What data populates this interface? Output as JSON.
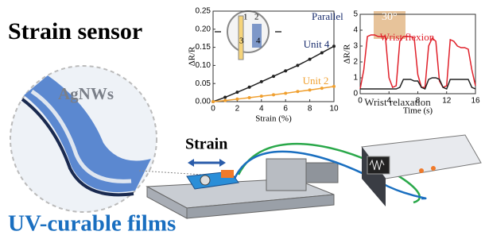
{
  "title": "Strain sensor",
  "subtitle": "UV-curable films",
  "labels": {
    "agnws": "AgNWs",
    "strain": "Strain"
  },
  "chart_data": [
    {
      "type": "line",
      "xlabel": "Strain (%)",
      "ylabel": "ΔR/R",
      "annotation": "Parallel",
      "inset_labels": [
        "1",
        "2",
        "3",
        "4"
      ],
      "x": [
        0,
        1,
        2,
        3,
        4,
        5,
        6,
        7,
        8,
        9,
        10
      ],
      "series": [
        {
          "name": "Unit 4",
          "color": "#222222",
          "values": [
            0,
            0.012,
            0.026,
            0.04,
            0.055,
            0.07,
            0.085,
            0.1,
            0.117,
            0.135,
            0.153
          ]
        },
        {
          "name": "Unit 2",
          "color": "#f0a030",
          "values": [
            0,
            0.003,
            0.007,
            0.011,
            0.015,
            0.019,
            0.023,
            0.028,
            0.032,
            0.037,
            0.042
          ]
        }
      ],
      "xlim": [
        0,
        10
      ],
      "xticks": [
        0,
        2,
        4,
        6,
        8,
        10
      ],
      "ylim": [
        0,
        0.25
      ],
      "yticks": [
        {
          "value": 0,
          "label": "0.00"
        },
        0.05,
        {
          "value": 0.1,
          "label": "0.10"
        },
        0.15,
        {
          "value": 0.2,
          "label": "0.20"
        },
        0.25
      ]
    },
    {
      "type": "line",
      "xlabel": "Time (s)",
      "ylabel": "ΔR/R",
      "annotation": "30°",
      "x": [
        0,
        0.5,
        1,
        1.5,
        2,
        2.5,
        3,
        3.5,
        4,
        4.5,
        5,
        5.5,
        6,
        6.5,
        7,
        7.5,
        8,
        8.5,
        9,
        9.5,
        10,
        10.5,
        11,
        11.5,
        12,
        12.5,
        13,
        13.5,
        14,
        14.5,
        15,
        15.5,
        16
      ],
      "series": [
        {
          "name": "Wrist flexion",
          "color": "#e0202a",
          "values": [
            0.3,
            1.5,
            3.6,
            3.7,
            3.7,
            3.6,
            3.6,
            3.6,
            1.0,
            0.4,
            0.5,
            3.3,
            3.6,
            3.6,
            3.6,
            3.5,
            1.2,
            0.4,
            0.4,
            3.0,
            3.5,
            3.3,
            0.8,
            0.4,
            0.5,
            3.4,
            3.3,
            3.0,
            2.9,
            2.9,
            2.8,
            1.5,
            0.5
          ]
        },
        {
          "name": "Wrist relaxation",
          "color": "#222222",
          "values": [
            0.3,
            0.3,
            0.3,
            0.3,
            0.3,
            0.3,
            0.3,
            0.3,
            0.3,
            0.3,
            0.3,
            0.4,
            0.9,
            0.9,
            0.9,
            0.8,
            0.8,
            0.4,
            0.3,
            0.9,
            1.0,
            1.0,
            0.9,
            0.4,
            0.3,
            0.9,
            0.9,
            0.9,
            0.9,
            0.9,
            0.9,
            0.4,
            0.3
          ]
        }
      ],
      "xlim": [
        0,
        16
      ],
      "xticks": [
        0,
        4,
        8,
        12,
        16
      ],
      "ylim": [
        0,
        5
      ],
      "yticks": [
        0,
        1,
        2,
        3,
        4,
        5
      ]
    }
  ]
}
